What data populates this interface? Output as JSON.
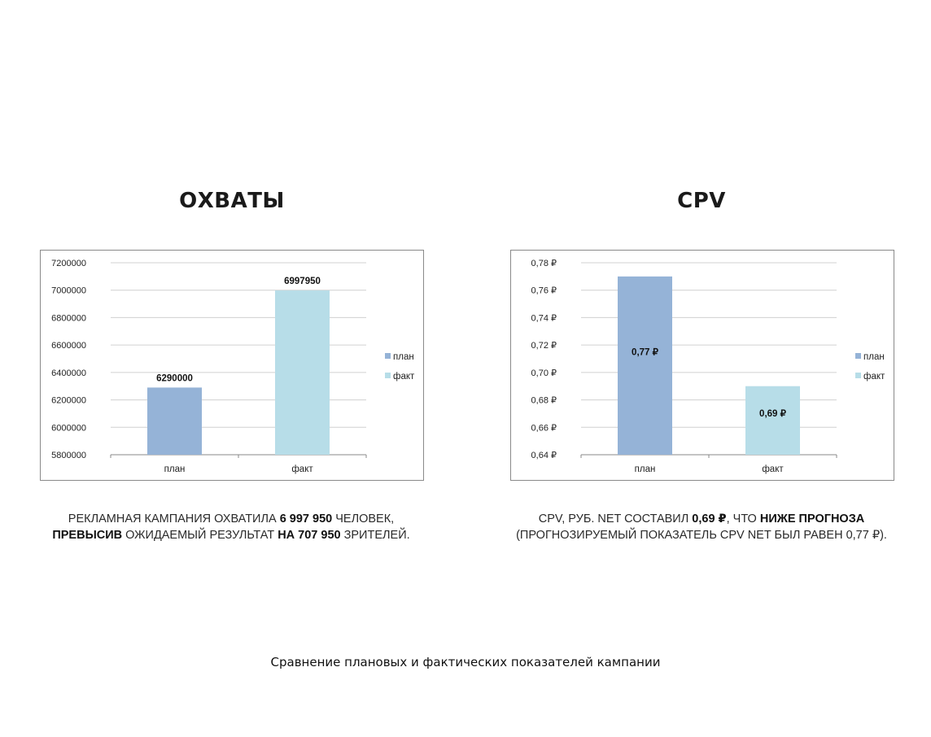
{
  "left_title": "ОХВАТЫ",
  "right_title": "CPV",
  "left_caption": {
    "line1_a": "РЕКЛАМНАЯ КАМПАНИЯ ОХВАТИЛА ",
    "line1_b": "6 997 950",
    "line1_c": " ЧЕЛОВЕК,",
    "line2_a": "ПРЕВЫСИВ",
    "line2_b": " ОЖИДАЕМЫЙ РЕЗУЛЬТАТ ",
    "line2_c": "НА 707 950",
    "line2_d": " ЗРИТЕЛЕЙ."
  },
  "right_caption": {
    "line1_a": "CPV, РУБ. NET СОСТАВИЛ ",
    "line1_b": "0,69 ₽",
    "line1_c": ", ЧТО ",
    "line1_d": "НИЖЕ ПРОГНОЗА",
    "line2": "(ПРОГНОЗИРУЕМЫЙ ПОКАЗАТЕЛЬ CPV NET БЫЛ РАВЕН 0,77 ₽)."
  },
  "footer": "Сравнение плановых и фактических показателей кампании",
  "colors": {
    "plan": "#95b3d7",
    "fact": "#b7dde8"
  },
  "chart_data": [
    {
      "type": "bar",
      "categories": [
        "план",
        "факт"
      ],
      "values": [
        6290000,
        6997950
      ],
      "value_labels": [
        "6290000",
        "6997950"
      ],
      "ylim": [
        5800000,
        7200000
      ],
      "yticks": [
        "5800000",
        "6000000",
        "6200000",
        "6400000",
        "6600000",
        "6800000",
        "7000000",
        "7200000"
      ],
      "legend": [
        "план",
        "факт"
      ],
      "legend_position": "right",
      "label_position": "above",
      "grid": true
    },
    {
      "type": "bar",
      "categories": [
        "план",
        "факт"
      ],
      "values": [
        0.77,
        0.69
      ],
      "value_labels": [
        "0,77 ₽",
        "0,69 ₽"
      ],
      "ylim": [
        0.64,
        0.78
      ],
      "yticks": [
        "0,64 ₽",
        "0,66 ₽",
        "0,68 ₽",
        "0,70 ₽",
        "0,72 ₽",
        "0,74 ₽",
        "0,76 ₽",
        "0,78 ₽"
      ],
      "legend": [
        "план",
        "факт"
      ],
      "legend_position": "right",
      "label_position": "inside",
      "grid": true
    }
  ]
}
